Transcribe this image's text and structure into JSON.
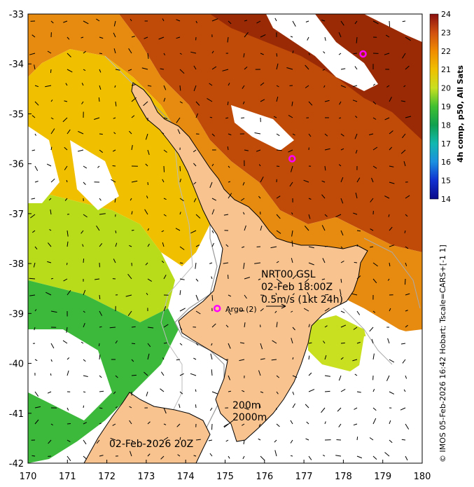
{
  "map": {
    "x_ticks": [
      "170",
      "171",
      "172",
      "173",
      "174",
      "175",
      "176",
      "177",
      "178",
      "179",
      "180"
    ],
    "y_ticks": [
      "-33",
      "-34",
      "-35",
      "-36",
      "-37",
      "-38",
      "-39",
      "-40",
      "-41",
      "-42"
    ],
    "lon_range": [
      170,
      180
    ],
    "lat_range": [
      -42,
      -33
    ]
  },
  "colorbar": {
    "title": "4h comp, p50, All Sats",
    "ticks": [
      "24",
      "23",
      "22",
      "21",
      "20",
      "19",
      "18",
      "17",
      "16",
      "15",
      "14"
    ],
    "range": [
      14,
      24
    ]
  },
  "annotations": {
    "product": "NRT00 GSL",
    "datetime": "02-Feb 18:00Z",
    "scale_label": "0.5m/s (1kt 24h)",
    "argo_label": "Argo (2)",
    "contour_200": "200m",
    "contour_2000": "2000m",
    "map_date": "02-Feb-2026 20Z",
    "credit": "© IMOS 05-Feb-2026 16:42 Hobart; Tscale=CARS+[-1 1]"
  },
  "argo_floats": [
    {
      "lon": 174.8,
      "lat": -38.9
    },
    {
      "lon": 176.7,
      "lat": -35.9
    },
    {
      "lon": 178.5,
      "lat": -33.8
    }
  ],
  "colors": {
    "land": "#f9c38f",
    "argo": "#ff00ff",
    "sst_warm": "#b33a00",
    "sst_mid": "#f0a000",
    "sst_cool": "#2db33a"
  }
}
